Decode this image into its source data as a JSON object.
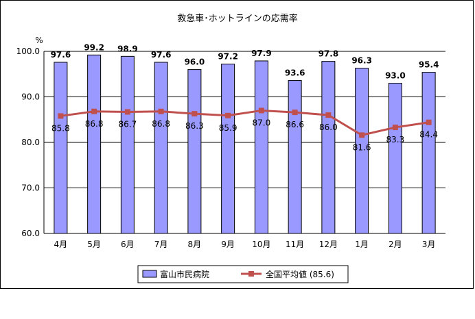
{
  "chart_data": {
    "type": "bar",
    "title": "救急車･ホットラインの応需率",
    "ylabel": "%",
    "ylim": [
      60,
      100
    ],
    "yticks": [
      "60.0",
      "70.0",
      "80.0",
      "90.0",
      "100.0"
    ],
    "grid": true,
    "legend_position": "bottom",
    "categories": [
      "4月",
      "5月",
      "6月",
      "7月",
      "8月",
      "9月",
      "10月",
      "11月",
      "12月",
      "1月",
      "2月",
      "3月"
    ],
    "series": [
      {
        "name": "富山市民病院",
        "kind": "bar",
        "color": "#9999ff",
        "values": [
          97.6,
          99.2,
          98.9,
          97.6,
          96.0,
          97.2,
          97.9,
          93.6,
          97.8,
          96.3,
          93.0,
          95.4
        ],
        "labels": [
          "97.6",
          "99.2",
          "98.9",
          "97.6",
          "96.0",
          "97.2",
          "97.9",
          "93.6",
          "97.8",
          "96.3",
          "93.0",
          "95.4"
        ]
      },
      {
        "name": "全国平均値 (85.6)",
        "kind": "line",
        "color": "#c0504d",
        "values": [
          85.8,
          86.8,
          86.7,
          86.8,
          86.3,
          85.9,
          87.0,
          86.6,
          86.0,
          81.6,
          83.3,
          84.4
        ],
        "labels": [
          "85.8",
          "86.8",
          "86.7",
          "86.8",
          "86.3",
          "85.9",
          "87.0",
          "86.6",
          "86.0",
          "81.6",
          "83.3",
          "84.4"
        ]
      }
    ]
  }
}
